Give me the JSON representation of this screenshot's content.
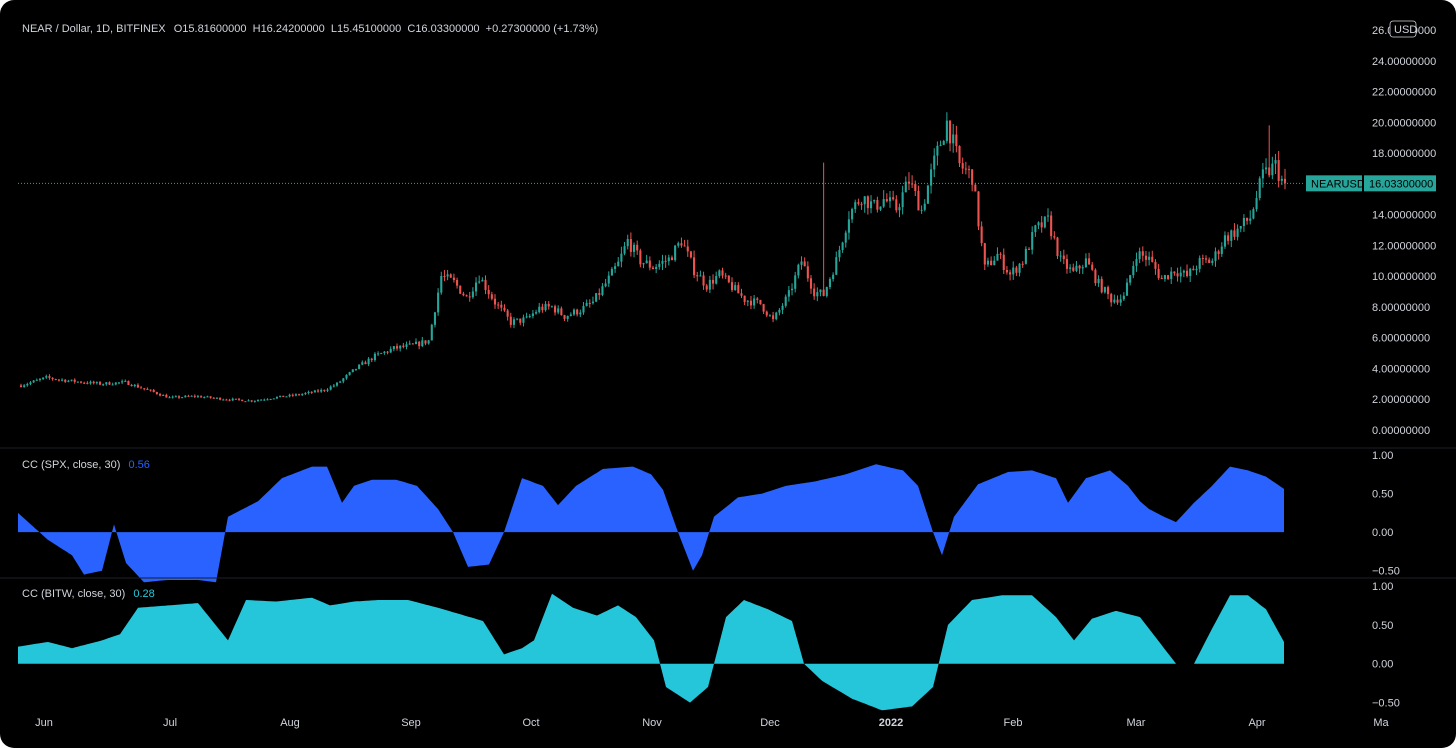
{
  "header": {
    "symbol_line": "NEAR / Dollar, 1D, BITFINEX",
    "ohlc": "O15.81600000  H16.24200000  L15.45100000  C16.03300000  +0.27300000 (+1.73%)"
  },
  "price_scale": {
    "currency": "USD",
    "ticks": [
      "0.00000000",
      "2.00000000",
      "4.00000000",
      "6.00000000",
      "8.00000000",
      "10.00000000",
      "12.00000000",
      "14.00000000",
      "16.00000000",
      "18.00000000",
      "20.00000000",
      "22.00000000",
      "24.00000000",
      "26.00000000"
    ],
    "last_symbol": "NEARUSD",
    "last_price": "16.03300000"
  },
  "indicators": [
    {
      "label": "CC (SPX, close, 30)",
      "value": "0.56",
      "color": "#2962ff",
      "ticks": [
        "1.00",
        "0.50",
        "0.00",
        "−0.50"
      ]
    },
    {
      "label": "CC (BITW, close, 30)",
      "value": "0.28",
      "color": "#26c6da",
      "ticks": [
        "1.00",
        "0.50",
        "0.00",
        "−0.50"
      ]
    }
  ],
  "time_axis": [
    "Jun",
    "Jul",
    "Aug",
    "Sep",
    "Oct",
    "Nov",
    "Dec",
    "2022",
    "Feb",
    "Mar",
    "Apr",
    "Ma"
  ],
  "colors": {
    "up": "#26a69a",
    "down": "#ef5350",
    "background": "#000000",
    "text": "#d1d4dc"
  },
  "chart_data": [
    {
      "type": "candlestick",
      "y_range": [
        0,
        26
      ],
      "last_close": 16.033,
      "anchors": [
        [
          0,
          2.9
        ],
        [
          8,
          3.4
        ],
        [
          15,
          3.2
        ],
        [
          25,
          3.0
        ],
        [
          33,
          3.1
        ],
        [
          40,
          2.6
        ],
        [
          47,
          2.1
        ],
        [
          55,
          2.2
        ],
        [
          65,
          2.0
        ],
        [
          73,
          1.9
        ],
        [
          80,
          2.1
        ],
        [
          88,
          2.3
        ],
        [
          96,
          2.6
        ],
        [
          100,
          3.0
        ],
        [
          106,
          4.0
        ],
        [
          112,
          4.8
        ],
        [
          118,
          5.3
        ],
        [
          124,
          5.5
        ],
        [
          129,
          5.8
        ],
        [
          133,
          10.0
        ],
        [
          137,
          9.6
        ],
        [
          141,
          8.6
        ],
        [
          145,
          10.0
        ],
        [
          150,
          8.3
        ],
        [
          155,
          7.0
        ],
        [
          160,
          7.2
        ],
        [
          164,
          7.9
        ],
        [
          168,
          8.0
        ],
        [
          172,
          7.4
        ],
        [
          177,
          7.8
        ],
        [
          181,
          8.3
        ],
        [
          185,
          9.5
        ],
        [
          189,
          10.8
        ],
        [
          192,
          12.3
        ],
        [
          196,
          11.0
        ],
        [
          200,
          10.6
        ],
        [
          205,
          11.1
        ],
        [
          209,
          12.3
        ],
        [
          213,
          10.4
        ],
        [
          217,
          9.4
        ],
        [
          221,
          10.1
        ],
        [
          225,
          9.3
        ],
        [
          229,
          8.5
        ],
        [
          234,
          8.2
        ],
        [
          238,
          7.1
        ],
        [
          243,
          8.8
        ],
        [
          247,
          11.0
        ],
        [
          251,
          9.0
        ],
        [
          254,
          8.8
        ],
        [
          258,
          11.0
        ],
        [
          262,
          14.0
        ],
        [
          266,
          15.2
        ],
        [
          270,
          14.5
        ],
        [
          273,
          15.0
        ],
        [
          277,
          14.4
        ],
        [
          281,
          16.2
        ],
        [
          285,
          14.3
        ],
        [
          289,
          17.4
        ],
        [
          293,
          20.0
        ],
        [
          297,
          17.2
        ],
        [
          301,
          16.5
        ],
        [
          305,
          10.5
        ],
        [
          309,
          11.4
        ],
        [
          313,
          10.1
        ],
        [
          317,
          11.0
        ],
        [
          321,
          13.0
        ],
        [
          325,
          13.6
        ],
        [
          329,
          11.0
        ],
        [
          333,
          10.2
        ],
        [
          337,
          11.0
        ],
        [
          341,
          9.5
        ],
        [
          345,
          8.5
        ],
        [
          349,
          8.6
        ],
        [
          353,
          11.5
        ],
        [
          357,
          11.1
        ],
        [
          361,
          9.8
        ],
        [
          365,
          10.4
        ],
        [
          369,
          10.0
        ],
        [
          373,
          10.9
        ],
        [
          377,
          11.0
        ],
        [
          381,
          12.5
        ],
        [
          385,
          13.0
        ],
        [
          389,
          13.8
        ],
        [
          393,
          16.5
        ],
        [
          397,
          17.2
        ],
        [
          400,
          15.7
        ]
      ]
    },
    {
      "type": "area",
      "series": [
        {
          "name": "CC (SPX, close, 30)"
        }
      ],
      "y_range": [
        -0.75,
        1.0
      ],
      "last_value": 0.56,
      "anchors": [
        [
          0,
          0.25
        ],
        [
          10,
          -0.1
        ],
        [
          18,
          -0.3
        ],
        [
          22,
          -0.55
        ],
        [
          28,
          -0.5
        ],
        [
          32,
          0.1
        ],
        [
          36,
          -0.4
        ],
        [
          42,
          -0.65
        ],
        [
          50,
          -0.62
        ],
        [
          60,
          -0.62
        ],
        [
          66,
          -0.65
        ],
        [
          70,
          0.2
        ],
        [
          80,
          0.4
        ],
        [
          88,
          0.7
        ],
        [
          98,
          0.85
        ],
        [
          103,
          0.85
        ],
        [
          108,
          0.38
        ],
        [
          112,
          0.6
        ],
        [
          118,
          0.68
        ],
        [
          126,
          0.68
        ],
        [
          133,
          0.6
        ],
        [
          140,
          0.3
        ],
        [
          145,
          0.0
        ],
        [
          150,
          -0.45
        ],
        [
          157,
          -0.42
        ],
        [
          162,
          0.0
        ],
        [
          168,
          0.7
        ],
        [
          175,
          0.6
        ],
        [
          180,
          0.35
        ],
        [
          186,
          0.6
        ],
        [
          195,
          0.82
        ],
        [
          205,
          0.85
        ],
        [
          211,
          0.75
        ],
        [
          215,
          0.55
        ],
        [
          220,
          0.0
        ],
        [
          225,
          -0.5
        ],
        [
          228,
          -0.3
        ],
        [
          232,
          0.2
        ],
        [
          240,
          0.45
        ],
        [
          248,
          0.5
        ],
        [
          256,
          0.6
        ],
        [
          266,
          0.66
        ],
        [
          276,
          0.75
        ],
        [
          286,
          0.88
        ],
        [
          295,
          0.8
        ],
        [
          300,
          0.6
        ],
        [
          305,
          0.0
        ],
        [
          308,
          -0.3
        ],
        [
          312,
          0.2
        ],
        [
          320,
          0.62
        ],
        [
          330,
          0.78
        ],
        [
          338,
          0.8
        ],
        [
          346,
          0.7
        ],
        [
          350,
          0.38
        ],
        [
          356,
          0.7
        ],
        [
          364,
          0.8
        ],
        [
          370,
          0.6
        ],
        [
          374,
          0.4
        ],
        [
          377,
          0.3
        ],
        [
          382,
          0.2
        ],
        [
          386,
          0.13
        ],
        [
          392,
          0.38
        ],
        [
          398,
          0.6
        ],
        [
          404,
          0.85
        ],
        [
          410,
          0.8
        ],
        [
          416,
          0.72
        ],
        [
          422,
          0.56
        ]
      ]
    },
    {
      "type": "area",
      "series": [
        {
          "name": "CC (BITW, close, 30)"
        }
      ],
      "y_range": [
        -0.75,
        1.0
      ],
      "last_value": 0.28,
      "anchors": [
        [
          0,
          0.22
        ],
        [
          10,
          0.28
        ],
        [
          18,
          0.2
        ],
        [
          28,
          0.3
        ],
        [
          34,
          0.38
        ],
        [
          40,
          0.72
        ],
        [
          50,
          0.75
        ],
        [
          60,
          0.78
        ],
        [
          70,
          0.3
        ],
        [
          76,
          0.82
        ],
        [
          86,
          0.8
        ],
        [
          98,
          0.85
        ],
        [
          104,
          0.75
        ],
        [
          112,
          0.8
        ],
        [
          120,
          0.82
        ],
        [
          130,
          0.82
        ],
        [
          140,
          0.72
        ],
        [
          155,
          0.55
        ],
        [
          162,
          0.12
        ],
        [
          168,
          0.2
        ],
        [
          172,
          0.3
        ],
        [
          178,
          0.9
        ],
        [
          185,
          0.72
        ],
        [
          193,
          0.62
        ],
        [
          200,
          0.75
        ],
        [
          206,
          0.6
        ],
        [
          212,
          0.3
        ],
        [
          216,
          -0.3
        ],
        [
          224,
          -0.5
        ],
        [
          230,
          -0.3
        ],
        [
          236,
          0.6
        ],
        [
          242,
          0.82
        ],
        [
          250,
          0.7
        ],
        [
          258,
          0.55
        ],
        [
          262,
          0.0
        ],
        [
          268,
          -0.22
        ],
        [
          278,
          -0.45
        ],
        [
          288,
          -0.6
        ],
        [
          298,
          -0.55
        ],
        [
          305,
          -0.3
        ],
        [
          310,
          0.5
        ],
        [
          318,
          0.82
        ],
        [
          328,
          0.88
        ],
        [
          338,
          0.88
        ],
        [
          346,
          0.6
        ],
        [
          352,
          0.3
        ],
        [
          358,
          0.58
        ],
        [
          366,
          0.68
        ],
        [
          374,
          0.6
        ],
        [
          380,
          0.3
        ],
        [
          386,
          0.0
        ],
        [
          392,
          0.0
        ],
        [
          398,
          0.45
        ],
        [
          404,
          0.88
        ],
        [
          410,
          0.88
        ],
        [
          416,
          0.7
        ],
        [
          422,
          0.28
        ]
      ]
    }
  ]
}
